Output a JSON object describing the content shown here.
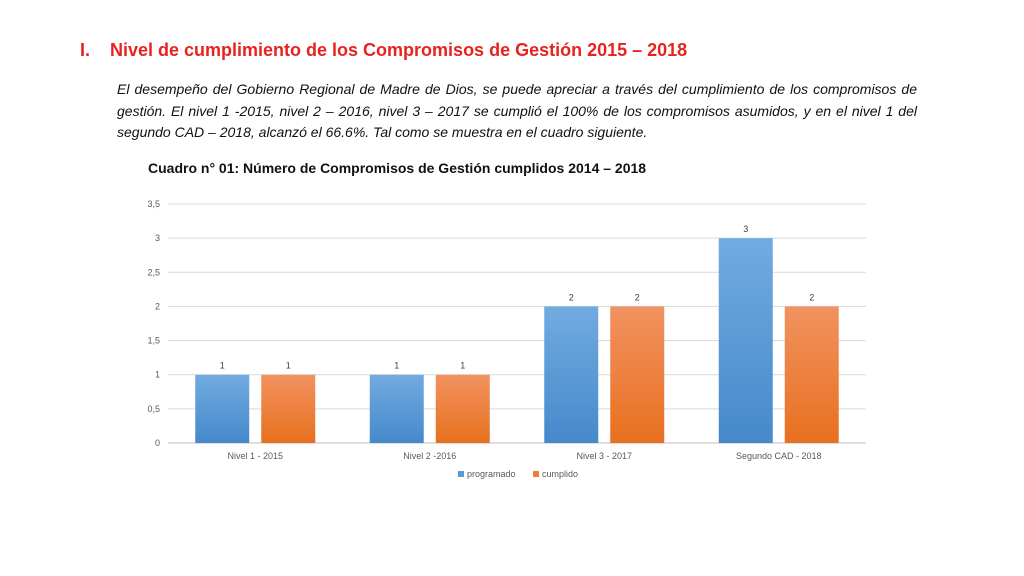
{
  "heading": {
    "number": "I.",
    "text": "Nivel de cumplimiento de los Compromisos de Gestión  2015 – 2018"
  },
  "intro": "El desempeño del Gobierno Regional de Madre de Dios, se puede apreciar a través del cumplimiento de los compromisos de gestión. El nivel 1 -2015, nivel 2 – 2016, nivel 3 – 2017 se cumplió el 100% de los compromisos asumidos, y en el nivel 1 del segundo CAD – 2018, alcanzó el 66.6%. Tal como se muestra en el cuadro siguiente.",
  "caption": "Cuadro n° 01: Número de Compromisos de Gestión cumplidos 2014 – 2018",
  "chart_data": {
    "type": "bar",
    "title": "",
    "xlabel": "",
    "ylabel": "",
    "categories": [
      "Nivel 1 - 2015",
      "Nivel 2 -2016",
      "Nivel 3 - 2017",
      "Segundo CAD - 2018"
    ],
    "series": [
      {
        "name": "programado",
        "values": [
          1,
          1,
          2,
          3
        ],
        "color": "#5b9bd5"
      },
      {
        "name": "cumplido",
        "values": [
          1,
          1,
          2,
          2
        ],
        "color": "#ed7d31"
      }
    ],
    "ylim": [
      0,
      3.5
    ],
    "yticks": [
      0,
      0.5,
      1,
      1.5,
      2,
      2.5,
      3,
      3.5
    ],
    "ytick_labels": [
      "0",
      "0,5",
      "1",
      "1,5",
      "2",
      "2,5",
      "3",
      "3,5"
    ],
    "data_labels": true,
    "grid": true,
    "legend": "bottom"
  }
}
